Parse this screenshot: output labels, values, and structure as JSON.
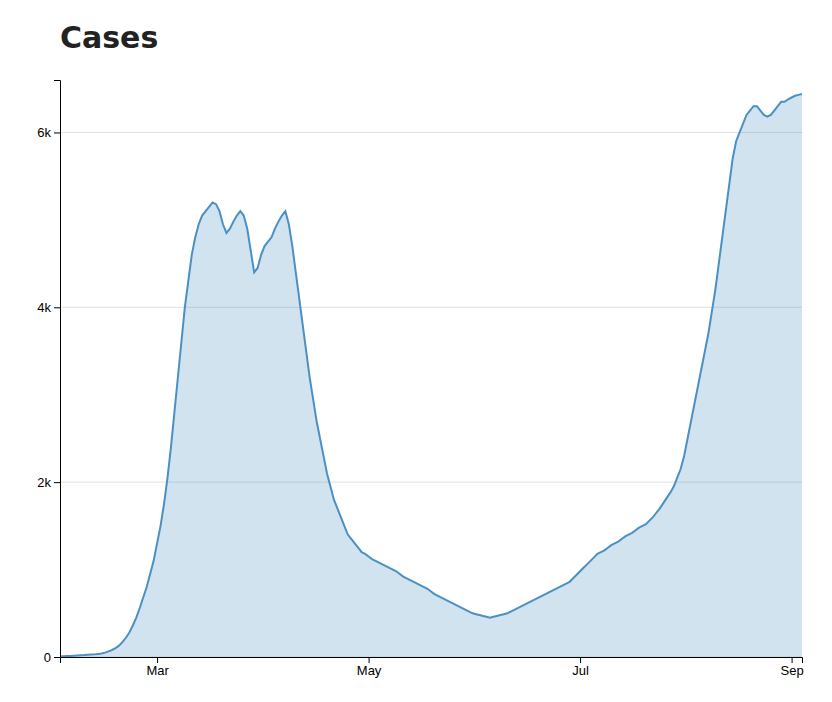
{
  "chart_data": {
    "type": "area",
    "title": "Cases",
    "color": "#4a90c4",
    "grid": true,
    "ylim": [
      0,
      6600
    ],
    "yticks": [
      0,
      {
        "value": 2000,
        "label": "2k"
      },
      {
        "value": 4000,
        "label": "4k"
      },
      {
        "value": 6000,
        "label": "6k"
      }
    ],
    "categories": [
      null,
      null,
      null,
      null,
      null,
      null,
      null,
      null,
      null,
      null,
      null,
      null,
      null,
      null,
      null,
      null,
      null,
      null,
      null,
      null,
      null,
      null,
      null,
      null,
      null,
      null,
      null,
      null,
      "Mar",
      null,
      null,
      null,
      null,
      null,
      null,
      null,
      null,
      null,
      null,
      null,
      null,
      null,
      null,
      null,
      null,
      null,
      null,
      null,
      null,
      null,
      null,
      null,
      null,
      null,
      null,
      null,
      null,
      null,
      null,
      null,
      null,
      null,
      null,
      null,
      null,
      null,
      null,
      null,
      null,
      null,
      null,
      null,
      null,
      null,
      null,
      null,
      null,
      null,
      null,
      null,
      null,
      null,
      null,
      null,
      null,
      null,
      null,
      null,
      null,
      "May",
      null,
      null,
      null,
      null,
      null,
      null,
      null,
      null,
      null,
      null,
      null,
      null,
      null,
      null,
      null,
      null,
      null,
      null,
      null,
      null,
      null,
      null,
      null,
      null,
      null,
      null,
      null,
      null,
      null,
      null,
      null,
      null,
      null,
      null,
      null,
      null,
      null,
      null,
      null,
      null,
      null,
      null,
      null,
      null,
      null,
      null,
      null,
      null,
      null,
      null,
      null,
      null,
      null,
      null,
      null,
      null,
      null,
      null,
      null,
      null,
      "Jul",
      null,
      null,
      null,
      null,
      null,
      null,
      null,
      null,
      null,
      null,
      null,
      null,
      null,
      null,
      null,
      null,
      null,
      null,
      null,
      null,
      null,
      null,
      null,
      null,
      null,
      null,
      null,
      null,
      null,
      null,
      null,
      null,
      null,
      null,
      null,
      null,
      null,
      null,
      null,
      null,
      null,
      null,
      null,
      null,
      null,
      null,
      null,
      null,
      null,
      null,
      null,
      null,
      null,
      null,
      null,
      null,
      null,
      null,
      null,
      null,
      "Sep",
      null,
      null,
      null
    ],
    "values": [
      10,
      10,
      12,
      12,
      15,
      18,
      20,
      22,
      25,
      28,
      30,
      35,
      40,
      50,
      65,
      80,
      100,
      130,
      170,
      220,
      280,
      360,
      450,
      560,
      680,
      800,
      950,
      1100,
      1300,
      1500,
      1750,
      2050,
      2400,
      2800,
      3200,
      3600,
      4000,
      4300,
      4600,
      4800,
      4950,
      5050,
      5100,
      5150,
      5200,
      5180,
      5100,
      4950,
      4850,
      4900,
      4980,
      5050,
      5100,
      5050,
      4900,
      4650,
      4400,
      4450,
      4600,
      4700,
      4750,
      4800,
      4900,
      4980,
      5050,
      5100,
      4950,
      4700,
      4400,
      4100,
      3800,
      3500,
      3200,
      2950,
      2700,
      2500,
      2300,
      2100,
      1950,
      1800,
      1700,
      1600,
      1500,
      1400,
      1350,
      1300,
      1250,
      1200,
      1180,
      1150,
      1120,
      1100,
      1080,
      1060,
      1040,
      1020,
      1000,
      980,
      950,
      920,
      900,
      880,
      860,
      840,
      820,
      800,
      780,
      750,
      720,
      700,
      680,
      660,
      640,
      620,
      600,
      580,
      560,
      540,
      520,
      500,
      490,
      480,
      470,
      460,
      450,
      460,
      470,
      480,
      490,
      500,
      520,
      540,
      560,
      580,
      600,
      620,
      640,
      660,
      680,
      700,
      720,
      740,
      760,
      780,
      800,
      820,
      840,
      860,
      900,
      940,
      980,
      1020,
      1060,
      1100,
      1140,
      1180,
      1200,
      1220,
      1250,
      1280,
      1300,
      1320,
      1350,
      1380,
      1400,
      1420,
      1450,
      1480,
      1500,
      1520,
      1560,
      1600,
      1650,
      1700,
      1760,
      1820,
      1880,
      1950,
      2050,
      2150,
      2300,
      2500,
      2700,
      2900,
      3100,
      3300,
      3500,
      3700,
      3950,
      4200,
      4500,
      4800,
      5100,
      5400,
      5700,
      5900,
      6000,
      6100,
      6200,
      6250,
      6300,
      6300,
      6250,
      6200,
      6180,
      6200,
      6250,
      6300,
      6350,
      6350,
      6380,
      6400,
      6420,
      6430,
      6440
    ]
  }
}
